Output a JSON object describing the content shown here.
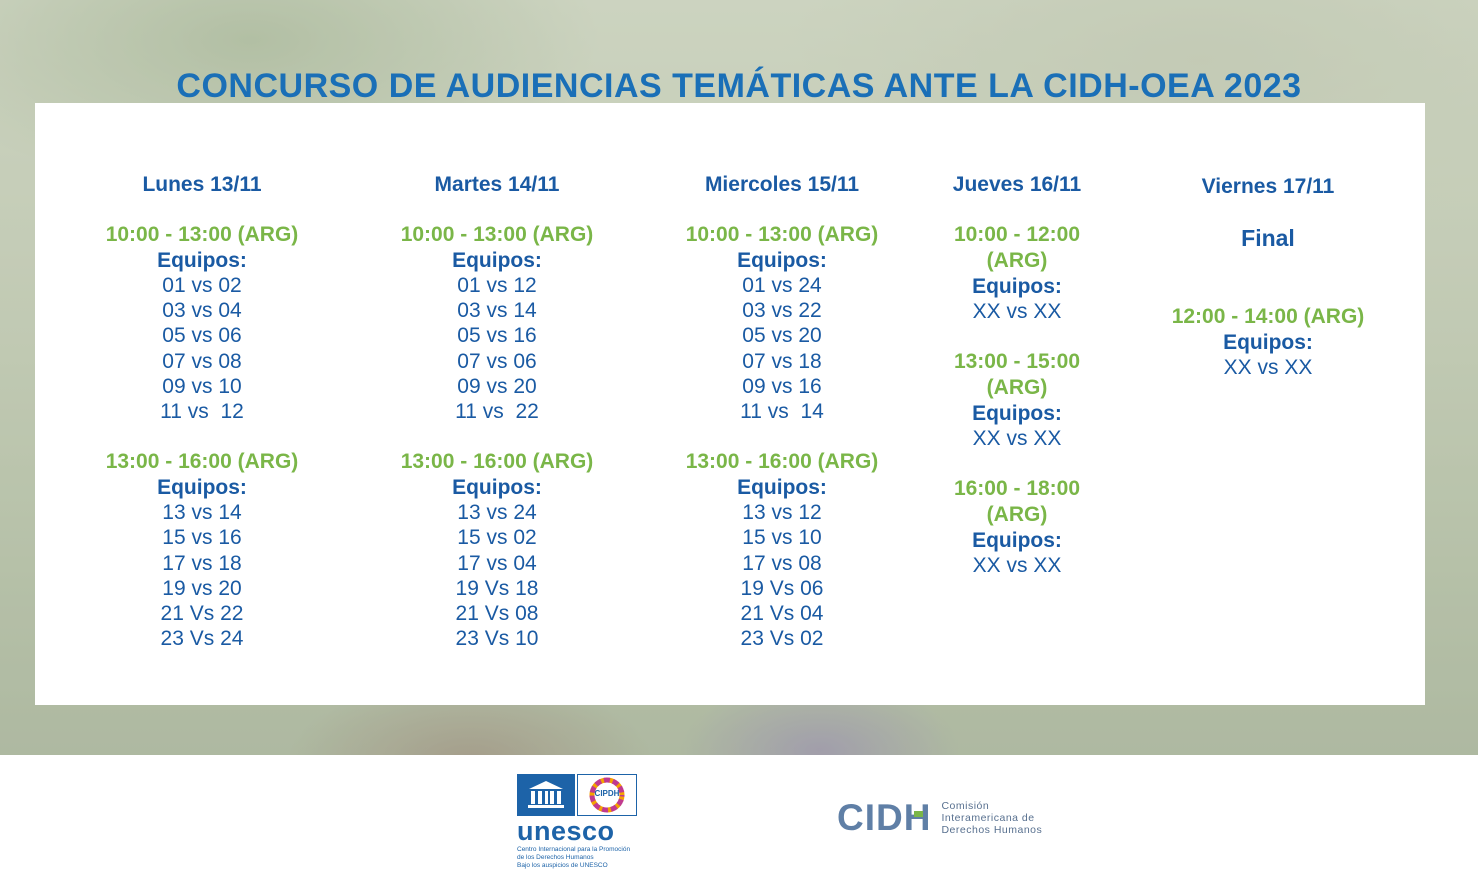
{
  "title": "CONCURSO DE AUDIENCIAS TEMÁTICAS ANTE LA CIDH-OEA 2023",
  "schedule": {
    "monday": {
      "day": "Lunes 13/11",
      "blocks": [
        {
          "time": "10:00 - 13:00 (ARG)",
          "label": "Equipos:",
          "matches": [
            "01 vs 02",
            "03 vs 04",
            "05 vs 06",
            "07 vs 08",
            "09 vs 10",
            "11 vs  12"
          ]
        },
        {
          "time": "13:00 - 16:00 (ARG)",
          "label": "Equipos:",
          "matches": [
            "13 vs 14",
            "15 vs 16",
            "17 vs 18",
            "19 vs 20",
            "21 Vs 22",
            "23 Vs 24"
          ]
        }
      ]
    },
    "tuesday": {
      "day": "Martes 14/11",
      "blocks": [
        {
          "time": "10:00 - 13:00 (ARG)",
          "label": "Equipos:",
          "matches": [
            "01 vs 12",
            "03 vs 14",
            "05 vs 16",
            "07 vs 06",
            "09 vs 20",
            "11 vs  22"
          ]
        },
        {
          "time": "13:00 - 16:00 (ARG)",
          "label": "Equipos:",
          "matches": [
            "13 vs 24",
            "15 vs 02",
            "17 vs 04",
            "19 Vs 18",
            "21 Vs 08",
            "23 Vs 10"
          ]
        }
      ]
    },
    "wednesday": {
      "day": "Miercoles 15/11",
      "blocks": [
        {
          "time": "10:00 - 13:00 (ARG)",
          "label": "Equipos:",
          "matches": [
            "01 vs 24",
            "03 vs 22",
            "05 vs 20",
            "07 vs 18",
            "09 vs 16",
            "11 vs  14"
          ]
        },
        {
          "time": "13:00 - 16:00 (ARG)",
          "label": "Equipos:",
          "matches": [
            "13 vs 12",
            "15 vs 10",
            "17 vs 08",
            "19 Vs 06",
            "21 Vs 04",
            "23 Vs 02"
          ]
        }
      ]
    },
    "thursday": {
      "day": "Jueves 16/11",
      "blocks": [
        {
          "time": "10:00 - 12:00 (ARG)",
          "label": "Equipos:",
          "matches": [
            "XX vs XX"
          ]
        },
        {
          "time": "13:00 - 15:00 (ARG)",
          "label": "Equipos:",
          "matches": [
            "XX vs XX"
          ]
        },
        {
          "time": "16:00 - 18:00 (ARG)",
          "label": "Equipos:",
          "matches": [
            "XX vs XX"
          ]
        }
      ]
    },
    "friday": {
      "day": "Viernes 17/11",
      "final_label": "Final",
      "blocks": [
        {
          "time": "12:00 - 14:00 (ARG)",
          "label": "Equipos:",
          "matches": [
            "XX vs XX"
          ]
        }
      ]
    }
  },
  "footer": {
    "unesco": {
      "word": "unesco",
      "badge": "CIPDH",
      "line1": "Centro Internacional para la Promoción",
      "line2": "de los Derechos Humanos",
      "line3": "Bajo los auspicios de UNESCO"
    },
    "cidh": {
      "logo_left": "CID",
      "logo_right": "H",
      "line1": "Comisión",
      "line2": "Interamericana de",
      "line3": "Derechos Humanos"
    }
  },
  "colors": {
    "title_blue": "#1a6fb7",
    "text_blue": "#1a5aa3",
    "time_green": "#7ab648"
  }
}
